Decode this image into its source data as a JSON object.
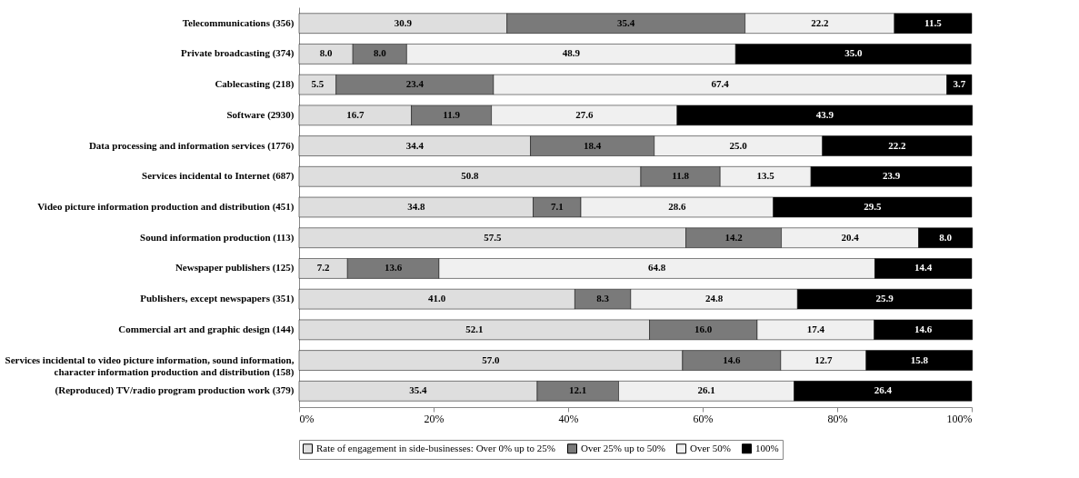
{
  "chart_data": {
    "type": "bar",
    "orientation": "horizontal",
    "stacked": true,
    "legend": "bottom",
    "grid": false,
    "categories": [
      "Telecommunications (356)",
      "Private broadcasting (374)",
      "Cablecasting (218)",
      "Software (2930)",
      "Data processing and information services (1776)",
      "Services incidental to Internet (687)",
      "Video picture information production and distribution (451)",
      "Sound information production (113)",
      "Newspaper publishers (125)",
      "Publishers, except newspapers (351)",
      "Commercial art and graphic design (144)",
      "Services incidental to video picture information, sound information, character information production and distribution (158)",
      "(Reproduced) TV/radio program production work (379)"
    ],
    "series": [
      {
        "name": "Rate of engagement in side-businesses: Over 0% up to 25%",
        "color": "#dedede",
        "values": [
          30.9,
          8.0,
          5.5,
          16.7,
          34.4,
          50.8,
          34.8,
          57.5,
          7.2,
          41.0,
          52.1,
          57.0,
          35.4
        ],
        "value_labels": [
          "30.9",
          "8.0",
          "5.5",
          "16.7",
          "34.4",
          "50.8",
          "34.8",
          "57.5",
          "7.2",
          "41.0",
          "52.1",
          "57.0",
          "35.4"
        ]
      },
      {
        "name": "Over 25% up to 50%",
        "color": "#7a7a7a",
        "values": [
          35.4,
          8.0,
          23.4,
          11.9,
          18.4,
          11.8,
          7.1,
          14.2,
          13.6,
          8.3,
          16.0,
          14.6,
          12.1
        ],
        "value_labels": [
          "35.4",
          "8.0",
          "23.4",
          "11.9",
          "18.4",
          "11.8",
          "7.1",
          "14.2",
          "13.6",
          "8.3",
          "16.0",
          "14.6",
          "12.1"
        ]
      },
      {
        "name": "Over 50%",
        "color": "#f0f0f0",
        "values": [
          22.2,
          48.9,
          67.4,
          27.6,
          25.0,
          13.5,
          28.6,
          20.4,
          64.8,
          24.8,
          17.4,
          12.7,
          26.1
        ],
        "value_labels": [
          "22.2",
          "48.9",
          "67.4",
          "27.6",
          "25.0",
          "13.5",
          "28.6",
          "20.4",
          "64.8",
          "24.8",
          "17.4",
          "12.7",
          "26.1"
        ]
      },
      {
        "name": "100%",
        "color": "#000000",
        "values": [
          11.5,
          35.0,
          3.7,
          43.9,
          22.2,
          23.9,
          29.5,
          8.0,
          14.4,
          25.9,
          14.6,
          15.8,
          26.4
        ],
        "value_labels": [
          "11.5",
          "35.0",
          "3.7",
          "43.9",
          "22.2",
          "23.9",
          "29.5",
          "8.0",
          "14.4",
          "25.9",
          "14.6",
          "15.8",
          "26.4"
        ]
      }
    ],
    "xlim": [
      0,
      100
    ],
    "xticks": [
      {
        "value": 0,
        "label": "0%"
      },
      {
        "value": 20,
        "label": "20%"
      },
      {
        "value": 40,
        "label": "40%"
      },
      {
        "value": 60,
        "label": "60%"
      },
      {
        "value": 80,
        "label": "80%"
      },
      {
        "value": 100,
        "label": "100%"
      }
    ]
  }
}
